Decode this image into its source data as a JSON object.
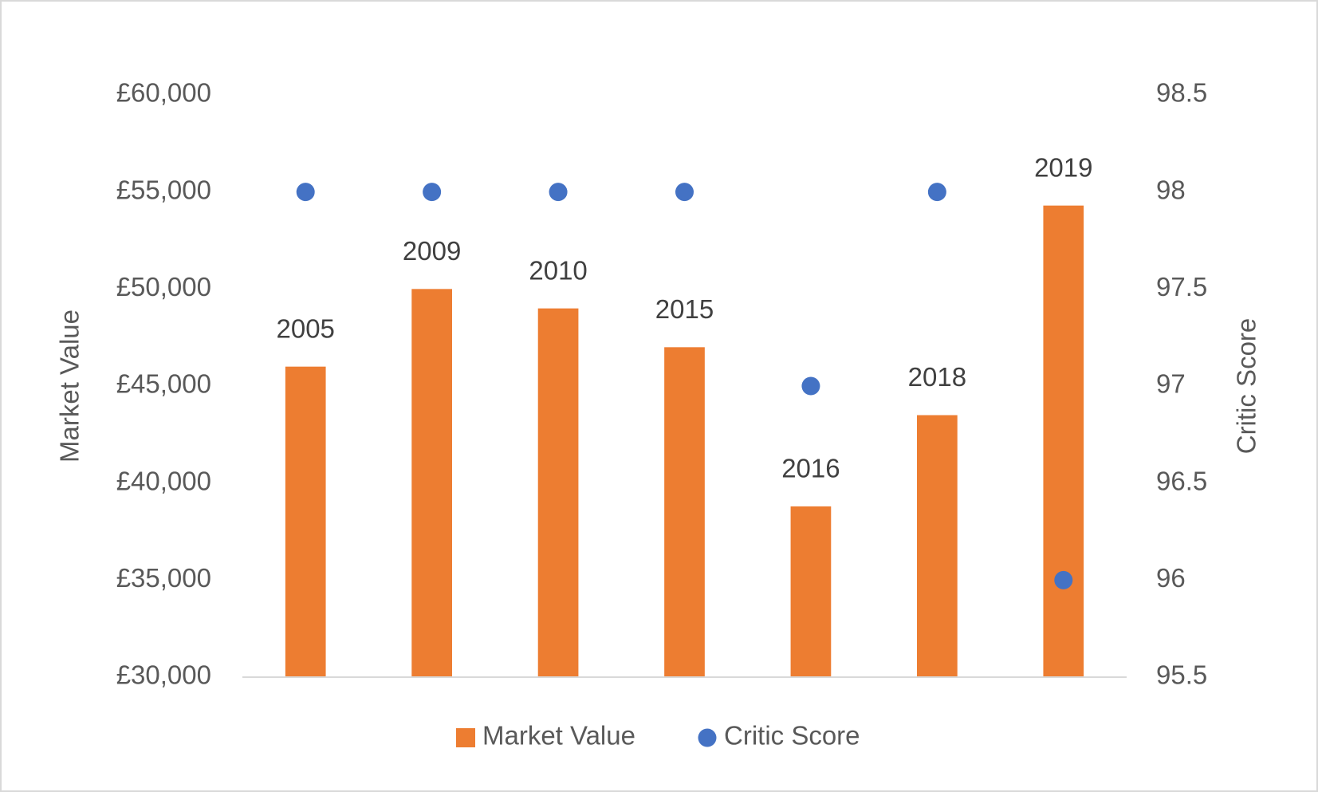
{
  "chart_data": {
    "type": "bar",
    "categories": [
      "2005",
      "2009",
      "2010",
      "2015",
      "2016",
      "2018",
      "2019"
    ],
    "series": [
      {
        "name": "Market Value",
        "color": "#ed7d31",
        "values": [
          46000,
          50000,
          49000,
          47000,
          38800,
          43500,
          54300
        ]
      },
      {
        "name": "Critic Score",
        "color": "#4472c4",
        "axis": "y2",
        "values": [
          98,
          98,
          98,
          98,
          97,
          98,
          96
        ]
      }
    ],
    "y_label": "Market Value",
    "y2_label": "Critic Score",
    "ylim": [
      30000,
      60000
    ],
    "yticks": [
      {
        "value": 30000,
        "label": "£30,000"
      },
      {
        "value": 35000,
        "label": "£35,000"
      },
      {
        "value": 40000,
        "label": "£40,000"
      },
      {
        "value": 45000,
        "label": "£45,000"
      },
      {
        "value": 50000,
        "label": "£50,000"
      },
      {
        "value": 55000,
        "label": "£55,000"
      },
      {
        "value": 60000,
        "label": "£60,000"
      }
    ],
    "y2lim": [
      95.5,
      98.5
    ],
    "y2ticks": [
      95.5,
      96,
      96.5,
      97,
      97.5,
      98,
      98.5
    ],
    "grid": false,
    "legend": "bottom"
  }
}
